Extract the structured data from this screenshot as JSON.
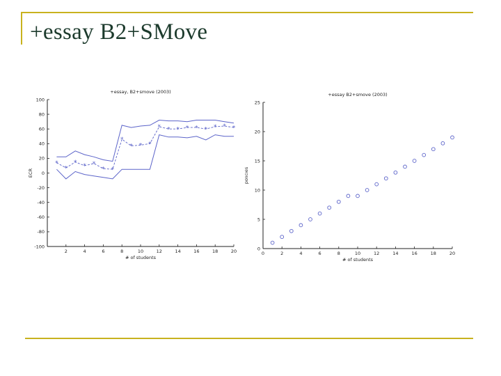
{
  "slide": {
    "title": "+essay B2+SMove"
  },
  "colors": {
    "accent_rule": "#c8b21e",
    "series": "#5b63c9"
  },
  "chart_data": [
    {
      "type": "line",
      "title": "+essay, B2+smove (2003)",
      "xlabel": "# of students",
      "ylabel": "ECR",
      "xlim": [
        0,
        20
      ],
      "ylim": [
        -100,
        100
      ],
      "xticks": [
        2,
        4,
        6,
        8,
        10,
        12,
        14,
        16,
        18,
        20
      ],
      "yticks": [
        100,
        80,
        60,
        40,
        20,
        0,
        -20,
        -40,
        -60,
        -80,
        -100
      ],
      "grid": false,
      "x": [
        1,
        2,
        3,
        4,
        5,
        6,
        7,
        8,
        9,
        10,
        11,
        12,
        13,
        14,
        15,
        16,
        17,
        18,
        19,
        20
      ],
      "series": [
        {
          "style": "upper-bound",
          "values": [
            22,
            22,
            30,
            25,
            22,
            18,
            16,
            65,
            62,
            64,
            65,
            72,
            71,
            71,
            70,
            72,
            72,
            72,
            70,
            68
          ]
        },
        {
          "style": "estimate",
          "marker": "*",
          "values": [
            14,
            7,
            15,
            10,
            13,
            6,
            5,
            46,
            37,
            38,
            40,
            63,
            60,
            60,
            62,
            62,
            60,
            63,
            64,
            62
          ]
        },
        {
          "style": "lower-bound",
          "values": [
            5,
            -8,
            2,
            -2,
            -4,
            -6,
            -8,
            5,
            5,
            5,
            5,
            52,
            49,
            49,
            48,
            50,
            45,
            52,
            50,
            50
          ]
        }
      ]
    },
    {
      "type": "scatter",
      "title": "+essay B2+smove (2003)",
      "xlabel": "# of students",
      "ylabel": "policies",
      "xlim": [
        0,
        20
      ],
      "ylim": [
        0,
        25
      ],
      "xticks": [
        0,
        2,
        4,
        6,
        8,
        10,
        12,
        14,
        16,
        18,
        20
      ],
      "yticks": [
        25,
        20,
        15,
        10,
        5,
        0
      ],
      "grid": false,
      "marker": "o",
      "x": [
        1,
        2,
        3,
        4,
        5,
        6,
        7,
        8,
        9,
        10,
        11,
        12,
        13,
        14,
        15,
        16,
        17,
        18,
        19,
        20
      ],
      "values": [
        1,
        2,
        3,
        4,
        5,
        6,
        7,
        8,
        9,
        9,
        10,
        11,
        12,
        13,
        14,
        15,
        16,
        17,
        18,
        19
      ]
    }
  ]
}
